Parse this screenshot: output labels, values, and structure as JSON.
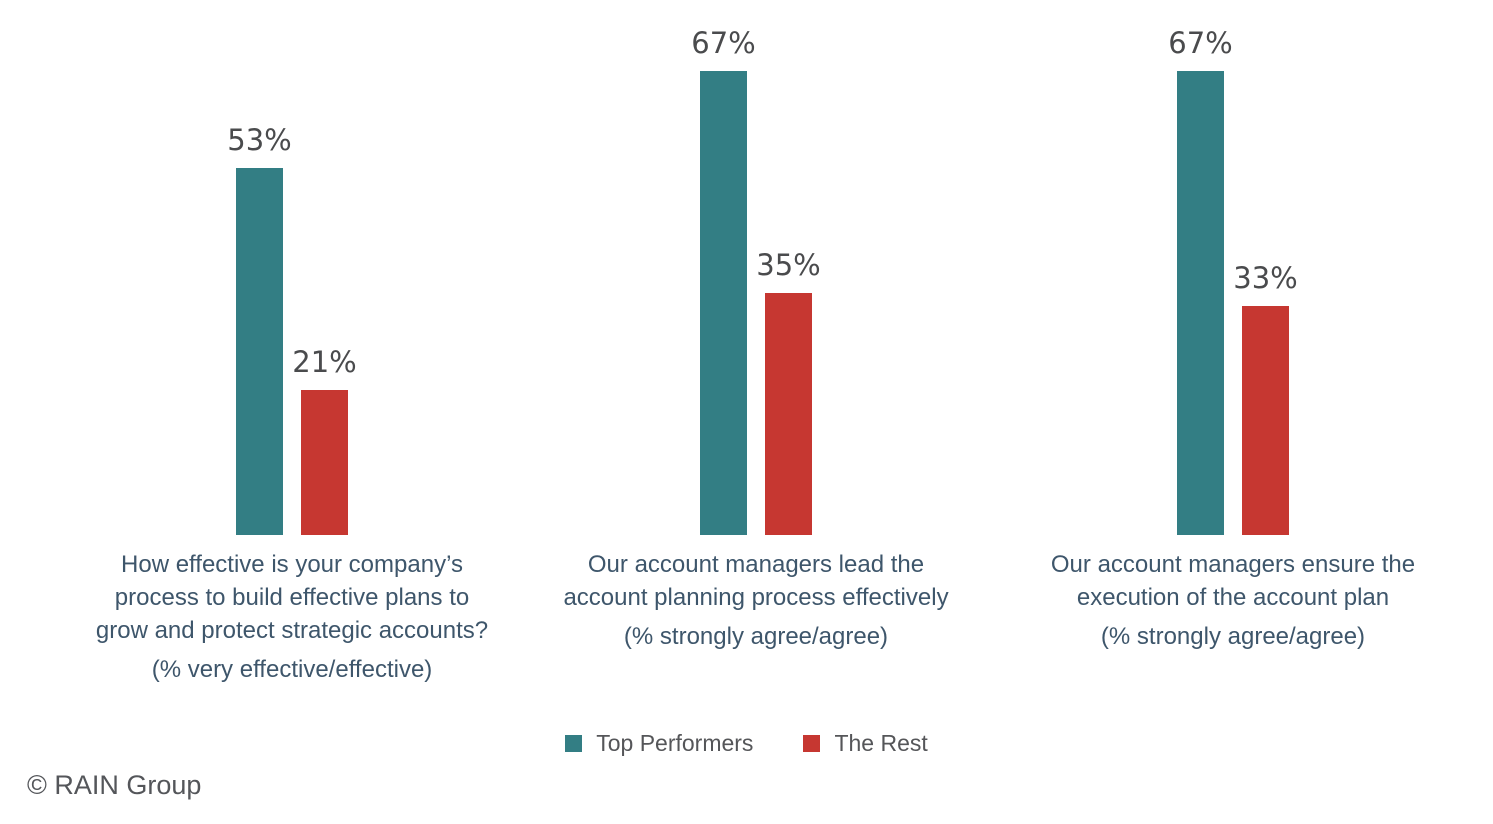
{
  "chart_data": {
    "type": "bar",
    "categories": [
      "How effective is your company’s process to build effective plans to grow and protect strategic accounts?",
      "Our account managers lead the account planning process effectively",
      "Our account managers ensure the execution of the account plan"
    ],
    "category_lines": [
      [
        "How effective is your company’s",
        "process to build effective plans to",
        "grow and protect strategic accounts?"
      ],
      [
        "Our account managers lead the",
        "account planning process effectively"
      ],
      [
        "Our account managers ensure the",
        "execution of the account plan"
      ]
    ],
    "category_subtitles": [
      "(% very effective/effective)",
      "(% strongly agree/agree)",
      "(% strongly agree/agree)"
    ],
    "series": [
      {
        "name": "Top Performers",
        "color": "#337E84",
        "values": [
          53,
          67,
          67
        ],
        "labels": [
          "53%",
          "67%",
          "67%"
        ]
      },
      {
        "name": "The Rest",
        "color": "#C63731",
        "values": [
          21,
          35,
          33
        ],
        "labels": [
          "21%",
          "35%",
          "33%"
        ]
      }
    ],
    "ylim": [
      0,
      67
    ],
    "grid": false,
    "axes_shown": false,
    "legend_position": "bottom",
    "title": ""
  },
  "footer": {
    "copyright": "© RAIN Group"
  }
}
